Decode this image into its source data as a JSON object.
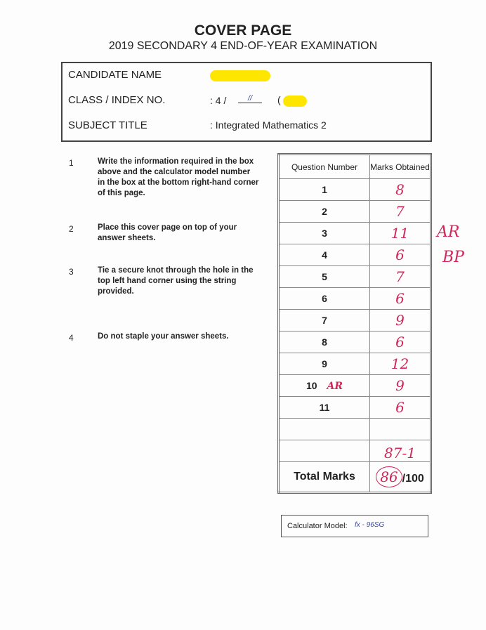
{
  "header": {
    "title": "COVER PAGE",
    "subtitle": "2019 SECONDARY 4 END-OF-YEAR EXAMINATION"
  },
  "info": {
    "candidate_label": "CANDIDATE NAME",
    "class_label": "CLASS / INDEX NO.",
    "class_value": ": 4 /",
    "class_handwritten": "//",
    "subject_label": "SUBJECT TITLE",
    "subject_value": ": Integrated Mathematics 2"
  },
  "instructions": [
    {
      "num": "1",
      "text": "Write the information required in the box above and the calculator model number in the box at the bottom right-hand corner of this page."
    },
    {
      "num": "2",
      "text": "Place this cover page on top of your answer sheets."
    },
    {
      "num": "3",
      "text": "Tie a secure knot through the hole in the top left hand corner using the string provided."
    },
    {
      "num": "4",
      "text": "Do not staple your answer sheets."
    }
  ],
  "marks_table": {
    "col_question": "Question Number",
    "col_marks": "Marks Obtained",
    "rows": [
      {
        "q": "1",
        "m": "8",
        "note": ""
      },
      {
        "q": "2",
        "m": "7",
        "note": ""
      },
      {
        "q": "3",
        "m": "11",
        "note": ""
      },
      {
        "q": "4",
        "m": "6",
        "note": ""
      },
      {
        "q": "5",
        "m": "7",
        "note": ""
      },
      {
        "q": "6",
        "m": "6",
        "note": ""
      },
      {
        "q": "7",
        "m": "9",
        "note": ""
      },
      {
        "q": "8",
        "m": "6",
        "note": ""
      },
      {
        "q": "9",
        "m": "12",
        "note": ""
      },
      {
        "q": "10",
        "m": "9",
        "note": "AR"
      },
      {
        "q": "11",
        "m": "6",
        "note": ""
      }
    ],
    "subtotal_note": "87-1",
    "total_label": "Total Marks",
    "total_value": "86",
    "total_max": "/100"
  },
  "margin_notes": [
    "AR",
    "BP"
  ],
  "calculator": {
    "label": "Calculator Model:",
    "value": "fx - 96SG"
  }
}
